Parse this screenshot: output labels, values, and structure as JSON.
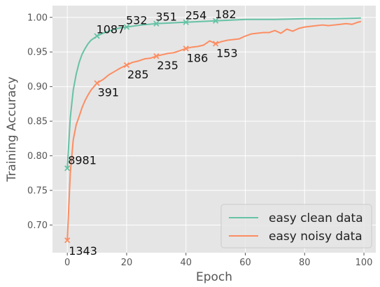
{
  "chart_data": {
    "type": "line",
    "xlabel": "Epoch",
    "ylabel": "Training Accuracy",
    "xlim": [
      -5,
      104
    ],
    "ylim": [
      0.66,
      1.017
    ],
    "xticks": [
      0,
      20,
      40,
      60,
      80,
      100
    ],
    "yticks": [
      0.7,
      0.75,
      0.8,
      0.85,
      0.9,
      0.95,
      1.0
    ],
    "grid": true,
    "legend_position": "bottom-right",
    "series": [
      {
        "name": "easy clean data",
        "color": "#66c2a5",
        "x": [
          0,
          1,
          2,
          3,
          4,
          5,
          6,
          7,
          8,
          9,
          10,
          12,
          14,
          16,
          18,
          20,
          25,
          30,
          35,
          40,
          45,
          50,
          55,
          60,
          70,
          80,
          90,
          99
        ],
        "y": [
          0.782,
          0.855,
          0.895,
          0.918,
          0.935,
          0.947,
          0.955,
          0.962,
          0.967,
          0.97,
          0.973,
          0.977,
          0.98,
          0.983,
          0.985,
          0.986,
          0.989,
          0.991,
          0.992,
          0.993,
          0.994,
          0.995,
          0.996,
          0.997,
          0.997,
          0.998,
          0.998,
          0.999
        ],
        "markers": [
          {
            "x": 0,
            "y": 0.782,
            "label": "8981"
          },
          {
            "x": 10,
            "y": 0.973,
            "label": "1087"
          },
          {
            "x": 20,
            "y": 0.986,
            "label": "532"
          },
          {
            "x": 30,
            "y": 0.991,
            "label": "351"
          },
          {
            "x": 40,
            "y": 0.993,
            "label": "254"
          },
          {
            "x": 50,
            "y": 0.995,
            "label": "182"
          }
        ]
      },
      {
        "name": "easy noisy data",
        "color": "#fc8d62",
        "x": [
          0,
          1,
          2,
          3,
          4,
          5,
          6,
          7,
          8,
          9,
          10,
          12,
          14,
          16,
          18,
          20,
          22,
          24,
          26,
          28,
          30,
          32,
          34,
          36,
          38,
          40,
          42,
          44,
          46,
          48,
          50,
          52,
          54,
          56,
          58,
          60,
          62,
          64,
          66,
          68,
          70,
          72,
          74,
          76,
          78,
          80,
          82,
          84,
          86,
          88,
          90,
          92,
          94,
          96,
          98,
          99
        ],
        "y": [
          0.678,
          0.775,
          0.823,
          0.845,
          0.857,
          0.87,
          0.88,
          0.888,
          0.895,
          0.9,
          0.905,
          0.91,
          0.917,
          0.922,
          0.927,
          0.931,
          0.935,
          0.937,
          0.94,
          0.941,
          0.944,
          0.946,
          0.948,
          0.949,
          0.952,
          0.955,
          0.957,
          0.958,
          0.96,
          0.966,
          0.962,
          0.965,
          0.967,
          0.968,
          0.969,
          0.973,
          0.976,
          0.977,
          0.978,
          0.978,
          0.981,
          0.977,
          0.983,
          0.98,
          0.984,
          0.986,
          0.987,
          0.988,
          0.989,
          0.988,
          0.989,
          0.99,
          0.991,
          0.99,
          0.993,
          0.994
        ],
        "markers": [
          {
            "x": 0,
            "y": 0.678,
            "label": "1343"
          },
          {
            "x": 10,
            "y": 0.905,
            "label": "391"
          },
          {
            "x": 20,
            "y": 0.931,
            "label": "285"
          },
          {
            "x": 30,
            "y": 0.944,
            "label": "235"
          },
          {
            "x": 40,
            "y": 0.955,
            "label": "186"
          },
          {
            "x": 50,
            "y": 0.962,
            "label": "153"
          }
        ]
      }
    ]
  }
}
